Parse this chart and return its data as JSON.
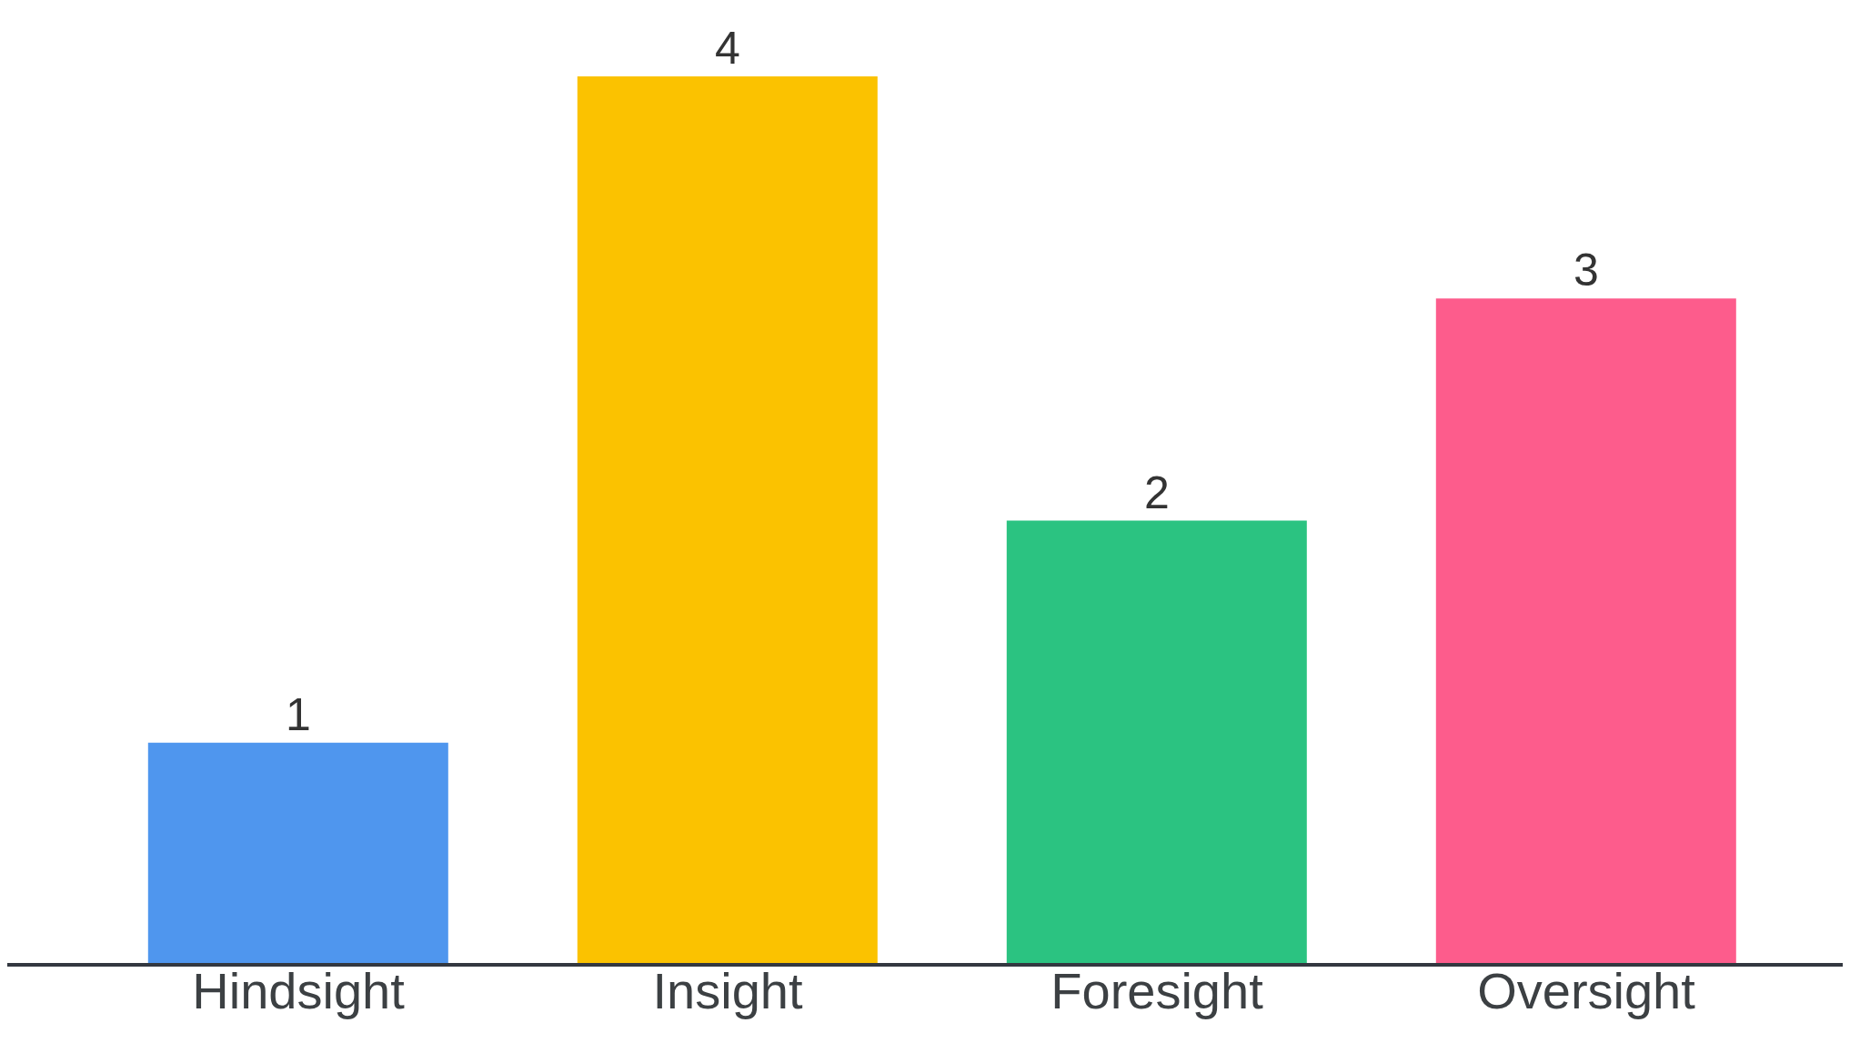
{
  "chart_data": {
    "type": "bar",
    "categories": [
      "Hindsight",
      "Insight",
      "Foresight",
      "Oversight"
    ],
    "values": [
      1,
      4,
      2,
      3
    ],
    "colors": [
      "#4f96ee",
      "#fbc200",
      "#2bc381",
      "#fd5c8c"
    ],
    "data_labels": true
  }
}
